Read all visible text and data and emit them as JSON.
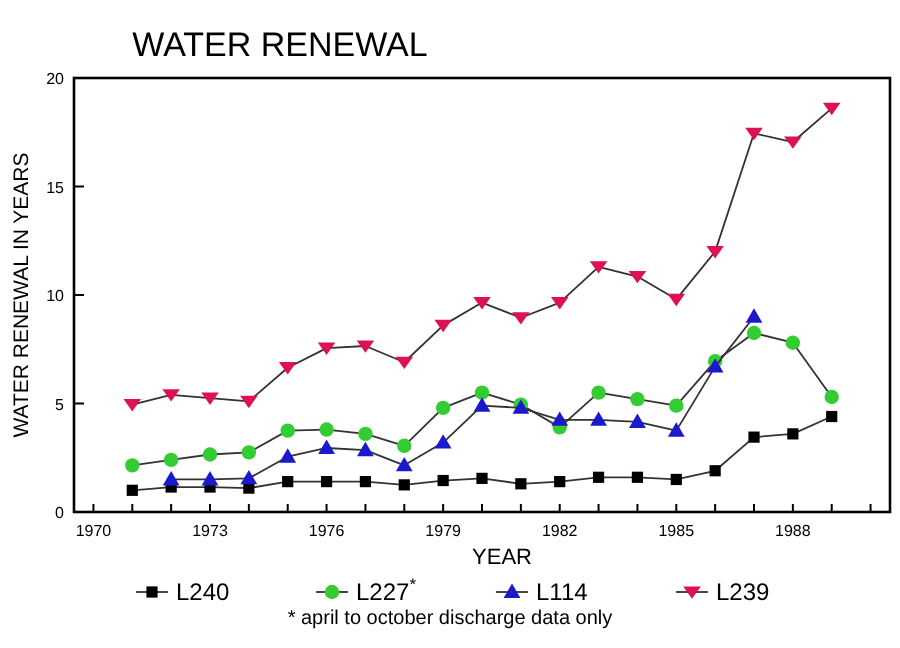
{
  "chart_data": {
    "type": "line",
    "title": "WATER RENEWAL",
    "xlabel": "YEAR",
    "ylabel": "WATER RENEWAL IN YEARS",
    "annotations": [
      "* april to october discharge data only"
    ],
    "x": [
      1971,
      1972,
      1973,
      1974,
      1975,
      1976,
      1977,
      1978,
      1979,
      1980,
      1981,
      1982,
      1983,
      1984,
      1985,
      1986,
      1987,
      1988,
      1989
    ],
    "series": [
      {
        "name": "L240",
        "color": "#000000",
        "marker": "square",
        "values": [
          1.0,
          1.15,
          1.15,
          1.1,
          1.4,
          1.4,
          1.4,
          1.25,
          1.45,
          1.55,
          1.3,
          1.4,
          1.6,
          1.6,
          1.5,
          1.9,
          3.45,
          3.6,
          4.4
        ]
      },
      {
        "name": "L227$^{*}$",
        "color": "#33cc33",
        "marker": "circle",
        "values": [
          2.15,
          2.4,
          2.65,
          2.75,
          3.75,
          3.8,
          3.6,
          3.05,
          4.8,
          5.5,
          4.95,
          3.9,
          5.5,
          5.2,
          4.9,
          6.95,
          8.25,
          7.8,
          5.3
        ]
      },
      {
        "name": "L114",
        "color": "#1a1acc",
        "marker": "triangle",
        "values": [
          null,
          1.5,
          1.5,
          1.55,
          2.55,
          2.95,
          2.85,
          2.15,
          3.2,
          4.9,
          4.8,
          4.25,
          4.25,
          4.15,
          3.75,
          6.7,
          9.0,
          null,
          null
        ]
      },
      {
        "name": "L239",
        "color": "#dd1155",
        "marker": "triangle-down",
        "values": [
          4.95,
          5.4,
          5.25,
          5.1,
          6.65,
          7.55,
          7.65,
          6.9,
          8.6,
          9.65,
          8.95,
          9.65,
          11.3,
          10.85,
          9.8,
          12.0,
          17.45,
          17.05,
          18.6
        ]
      }
    ],
    "xlim": [
      1969.5,
      1990.5
    ],
    "xticks": [
      1970,
      {
        "value": 1971,
        "label": null
      },
      {
        "value": 1972,
        "label": null
      },
      1973,
      {
        "value": 1974,
        "label": null
      },
      {
        "value": 1975,
        "label": null
      },
      1976,
      {
        "value": 1977,
        "label": null
      },
      {
        "value": 1978,
        "label": null
      },
      1979,
      {
        "value": 1980,
        "label": null
      },
      {
        "value": 1981,
        "label": null
      },
      1982,
      {
        "value": 1983,
        "label": null
      },
      {
        "value": 1984,
        "label": null
      },
      1985,
      {
        "value": 1986,
        "label": null
      },
      {
        "value": 1987,
        "label": null
      },
      1988,
      {
        "value": 1989,
        "label": null
      },
      {
        "value": 1990,
        "label": null
      }
    ],
    "ylim": [
      0,
      20
    ],
    "yticks": [
      0,
      5,
      10,
      15,
      20
    ],
    "grid": false,
    "legend": "bottom"
  }
}
